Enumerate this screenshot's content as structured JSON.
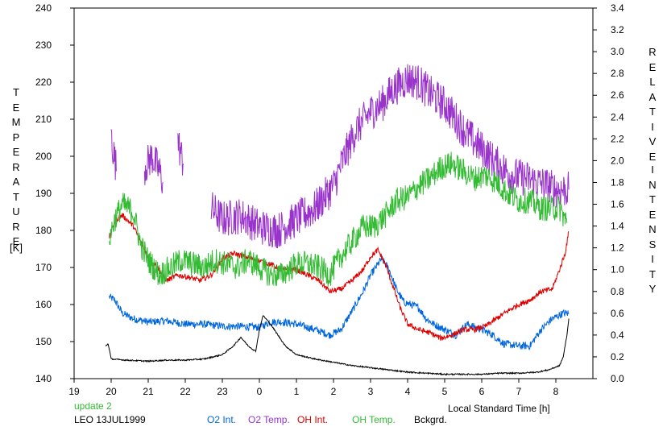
{
  "chart_data": {
    "type": "line",
    "left_axis_title": "TEMPERATURE",
    "left_axis_unit": "[K]",
    "right_axis_title": "RELATIVE",
    "right_axis_title_2": "INTENSITY",
    "xlabel": "Local Standard Time [h]",
    "x_ticks": [
      "19",
      "20",
      "21",
      "22",
      "23",
      "0",
      "1",
      "2",
      "3",
      "4",
      "5",
      "6",
      "7",
      "8"
    ],
    "xlim": [
      19,
      33
    ],
    "y_left_ticks": [
      "240",
      "230",
      "220",
      "210",
      "200",
      "190",
      "180",
      "170",
      "160",
      "150",
      "140"
    ],
    "ylim_left": [
      140,
      240
    ],
    "y_right_ticks": [
      "3.4",
      "3.2",
      "3.0",
      "2.8",
      "2.6",
      "2.4",
      "2.2",
      "2.0",
      "1.8",
      "1.6",
      "1.4",
      "1.2",
      "1.0",
      "0.8",
      "0.6",
      "0.4",
      "0.2",
      "0.0"
    ],
    "ylim_right": [
      0,
      3.4
    ],
    "grid": false,
    "series": [
      {
        "name": "O2 Int.",
        "color": "#0066dd",
        "axis": "right",
        "noise": 0.035,
        "points": [
          [
            19.95,
            0.75
          ],
          [
            20.1,
            0.72
          ],
          [
            20.3,
            0.6
          ],
          [
            20.6,
            0.55
          ],
          [
            21,
            0.52
          ],
          [
            21.5,
            0.53
          ],
          [
            22,
            0.5
          ],
          [
            22.5,
            0.5
          ],
          [
            23,
            0.48
          ],
          [
            23.5,
            0.48
          ],
          [
            24,
            0.47
          ],
          [
            24.3,
            0.52
          ],
          [
            24.6,
            0.52
          ],
          [
            25,
            0.5
          ],
          [
            25.5,
            0.45
          ],
          [
            25.9,
            0.4
          ],
          [
            26.2,
            0.45
          ],
          [
            26.5,
            0.62
          ],
          [
            26.8,
            0.8
          ],
          [
            27,
            0.95
          ],
          [
            27.3,
            1.1
          ],
          [
            27.5,
            1.0
          ],
          [
            27.7,
            0.82
          ],
          [
            27.9,
            0.7
          ],
          [
            28.1,
            0.68
          ],
          [
            28.3,
            0.65
          ],
          [
            28.5,
            0.55
          ],
          [
            28.7,
            0.5
          ],
          [
            29,
            0.45
          ],
          [
            29.3,
            0.4
          ],
          [
            29.6,
            0.5
          ],
          [
            30,
            0.45
          ],
          [
            30.3,
            0.4
          ],
          [
            30.6,
            0.32
          ],
          [
            31,
            0.3
          ],
          [
            31.3,
            0.3
          ],
          [
            31.6,
            0.45
          ],
          [
            31.9,
            0.55
          ],
          [
            32.2,
            0.6
          ],
          [
            32.35,
            0.6
          ]
        ]
      },
      {
        "name": "O2 Temp.",
        "color": "#9933cc",
        "axis": "left",
        "noise": 5,
        "segments": [
          [
            [
              20,
              206
            ],
            [
              20.05,
              202
            ],
            [
              20.1,
              199
            ],
            [
              20.15,
              196
            ]
          ],
          [
            [
              20.9,
              197
            ],
            [
              21.1,
              200
            ],
            [
              21.3,
              196
            ],
            [
              21.4,
              193
            ]
          ],
          [
            [
              21.8,
              204
            ],
            [
              21.9,
              200
            ],
            [
              21.95,
              198
            ]
          ],
          [
            [
              22.7,
              186
            ],
            [
              23,
              183
            ],
            [
              23.5,
              184
            ],
            [
              24,
              181
            ],
            [
              24.5,
              180
            ],
            [
              25,
              183
            ],
            [
              25.5,
              186
            ],
            [
              26,
              192
            ],
            [
              26.3,
              200
            ],
            [
              26.6,
              207
            ],
            [
              27,
              212
            ],
            [
              27.3,
              214
            ],
            [
              27.6,
              218
            ],
            [
              28,
              221
            ],
            [
              28.3,
              220
            ],
            [
              28.6,
              217
            ],
            [
              29,
              214
            ],
            [
              29.3,
              210
            ],
            [
              29.6,
              206
            ],
            [
              30,
              202
            ],
            [
              30.4,
              198
            ],
            [
              30.8,
              195
            ],
            [
              31.2,
              194
            ],
            [
              31.5,
              193
            ],
            [
              31.8,
              192
            ],
            [
              32,
              191
            ],
            [
              32.2,
              191
            ],
            [
              32.35,
              191
            ]
          ]
        ]
      },
      {
        "name": "OH Int.",
        "color": "#dd0000",
        "axis": "right",
        "noise": 0.025,
        "points": [
          [
            19.95,
            1.3
          ],
          [
            20.1,
            1.45
          ],
          [
            20.3,
            1.5
          ],
          [
            20.6,
            1.4
          ],
          [
            20.8,
            1.25
          ],
          [
            21,
            1.12
          ],
          [
            21.3,
            1.0
          ],
          [
            21.5,
            0.9
          ],
          [
            21.8,
            0.95
          ],
          [
            22.1,
            0.93
          ],
          [
            22.4,
            0.9
          ],
          [
            22.7,
            0.95
          ],
          [
            23,
            1.1
          ],
          [
            23.3,
            1.15
          ],
          [
            23.6,
            1.12
          ],
          [
            24,
            1.08
          ],
          [
            24.3,
            1.05
          ],
          [
            24.6,
            1.0
          ],
          [
            25,
            1.0
          ],
          [
            25.3,
            0.95
          ],
          [
            25.6,
            0.9
          ],
          [
            25.9,
            0.8
          ],
          [
            26.2,
            0.82
          ],
          [
            26.5,
            0.9
          ],
          [
            26.8,
            1.0
          ],
          [
            27,
            1.12
          ],
          [
            27.2,
            1.18
          ],
          [
            27.4,
            1.05
          ],
          [
            27.6,
            0.85
          ],
          [
            27.8,
            0.65
          ],
          [
            28,
            0.5
          ],
          [
            28.3,
            0.45
          ],
          [
            28.6,
            0.42
          ],
          [
            28.9,
            0.37
          ],
          [
            29.2,
            0.4
          ],
          [
            29.5,
            0.45
          ],
          [
            29.8,
            0.45
          ],
          [
            30.1,
            0.48
          ],
          [
            30.4,
            0.55
          ],
          [
            30.7,
            0.62
          ],
          [
            31,
            0.68
          ],
          [
            31.3,
            0.72
          ],
          [
            31.6,
            0.8
          ],
          [
            31.9,
            0.82
          ],
          [
            32.1,
            1.0
          ],
          [
            32.25,
            1.15
          ],
          [
            32.35,
            1.35
          ]
        ]
      },
      {
        "name": "OH Temp.",
        "color": "#33bb33",
        "axis": "left",
        "noise": 3.5,
        "points": [
          [
            19.95,
            178
          ],
          [
            20.1,
            183
          ],
          [
            20.3,
            187
          ],
          [
            20.6,
            185
          ],
          [
            20.8,
            176
          ],
          [
            21,
            172
          ],
          [
            21.3,
            168
          ],
          [
            21.6,
            170
          ],
          [
            21.9,
            172
          ],
          [
            22.2,
            171
          ],
          [
            22.5,
            170
          ],
          [
            22.8,
            172
          ],
          [
            23.1,
            171
          ],
          [
            23.4,
            170
          ],
          [
            23.7,
            172
          ],
          [
            24,
            170
          ],
          [
            24.3,
            168
          ],
          [
            24.6,
            168
          ],
          [
            25,
            171
          ],
          [
            25.3,
            171
          ],
          [
            25.6,
            170
          ],
          [
            25.9,
            168
          ],
          [
            26.2,
            173
          ],
          [
            26.5,
            177
          ],
          [
            26.8,
            181
          ],
          [
            27.1,
            181
          ],
          [
            27.4,
            184
          ],
          [
            27.7,
            188
          ],
          [
            28,
            189
          ],
          [
            28.3,
            192
          ],
          [
            28.6,
            194
          ],
          [
            28.9,
            197
          ],
          [
            29.2,
            198
          ],
          [
            29.5,
            196
          ],
          [
            29.8,
            194
          ],
          [
            30.1,
            195
          ],
          [
            30.4,
            193
          ],
          [
            30.7,
            190
          ],
          [
            31,
            188
          ],
          [
            31.3,
            188
          ],
          [
            31.6,
            186
          ],
          [
            31.9,
            186
          ],
          [
            32.1,
            186
          ],
          [
            32.3,
            182
          ]
        ]
      },
      {
        "name": "Bckgrd.",
        "color": "#000000",
        "axis": "right",
        "noise": 0.006,
        "points": [
          [
            19.85,
            0.3
          ],
          [
            19.92,
            0.32
          ],
          [
            19.96,
            0.25
          ],
          [
            20,
            0.18
          ],
          [
            20.4,
            0.17
          ],
          [
            21,
            0.16
          ],
          [
            21.5,
            0.17
          ],
          [
            22,
            0.17
          ],
          [
            22.5,
            0.18
          ],
          [
            23,
            0.22
          ],
          [
            23.3,
            0.3
          ],
          [
            23.5,
            0.38
          ],
          [
            23.7,
            0.3
          ],
          [
            23.9,
            0.25
          ],
          [
            24,
            0.45
          ],
          [
            24.1,
            0.58
          ],
          [
            24.3,
            0.5
          ],
          [
            24.5,
            0.4
          ],
          [
            24.7,
            0.3
          ],
          [
            25,
            0.22
          ],
          [
            25.5,
            0.18
          ],
          [
            26,
            0.15
          ],
          [
            26.5,
            0.12
          ],
          [
            27,
            0.1
          ],
          [
            27.5,
            0.08
          ],
          [
            28,
            0.06
          ],
          [
            28.5,
            0.05
          ],
          [
            29,
            0.04
          ],
          [
            29.5,
            0.04
          ],
          [
            30,
            0.04
          ],
          [
            30.5,
            0.05
          ],
          [
            31,
            0.05
          ],
          [
            31.5,
            0.06
          ],
          [
            31.8,
            0.08
          ],
          [
            32.1,
            0.12
          ],
          [
            32.2,
            0.2
          ],
          [
            32.3,
            0.4
          ],
          [
            32.35,
            0.55
          ]
        ]
      }
    ]
  },
  "footer": {
    "status": "update 2",
    "station": "LEO 13JUL1999"
  }
}
